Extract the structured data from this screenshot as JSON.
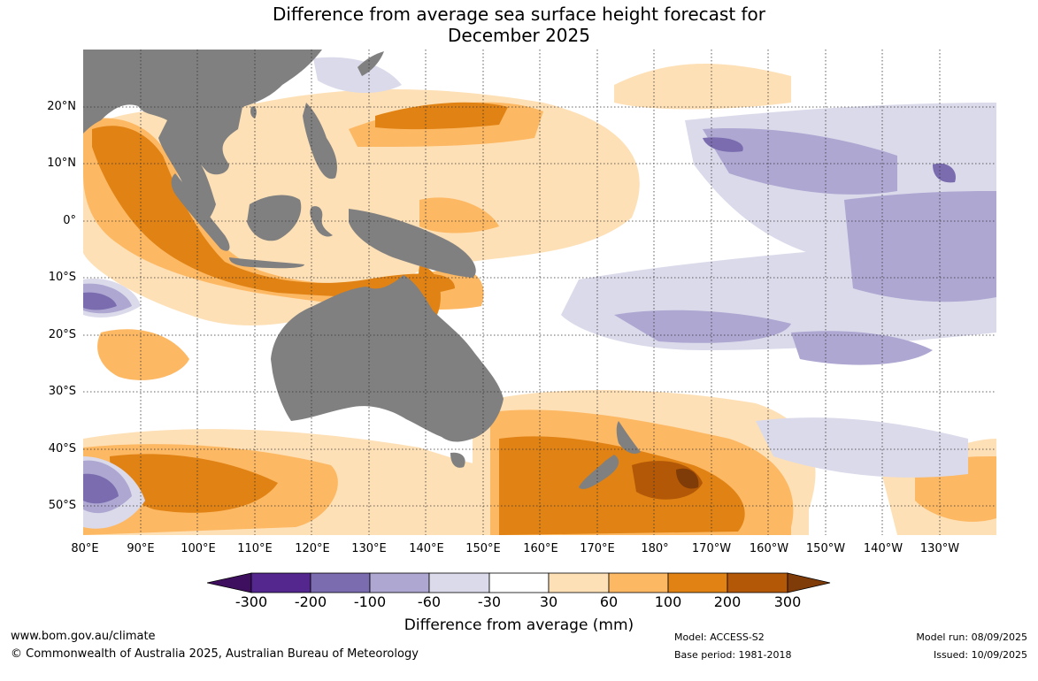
{
  "title": {
    "line1": "Difference from average sea surface height forecast for",
    "line2": "December 2025"
  },
  "map": {
    "lat_labels": [
      "20°N",
      "10°N",
      "0°",
      "10°S",
      "20°S",
      "30°S",
      "40°S",
      "50°S"
    ],
    "lon_labels": [
      "80°E",
      "90°E",
      "100°E",
      "110°E",
      "120°E",
      "130°E",
      "140°E",
      "150°E",
      "160°E",
      "170°E",
      "180°",
      "170°W",
      "160°W",
      "150°W",
      "140°W",
      "130°W"
    ],
    "land_color": "#808080",
    "grid": true
  },
  "legend": {
    "ticks": [
      "-300",
      "-200",
      "-100",
      "-60",
      "-30",
      "30",
      "60",
      "100",
      "200",
      "300"
    ],
    "colors": [
      "#3f0f5f",
      "#54278f",
      "#7a6caf",
      "#ada7d1",
      "#dadaeb",
      "#ffffff",
      "#fee0b6",
      "#fdb863",
      "#e08214",
      "#b35806",
      "#7f3b08"
    ],
    "title": "Difference from average (mm)"
  },
  "footer": {
    "website": "www.bom.gov.au/climate",
    "copyright": "© Commonwealth of Australia 2025, Australian Bureau of Meteorology",
    "model": "Model: ACCESS-S2",
    "base_period": "Base period: 1981-2018",
    "model_run": "Model run: 08/09/2025",
    "issued": "Issued: 10/09/2025"
  }
}
